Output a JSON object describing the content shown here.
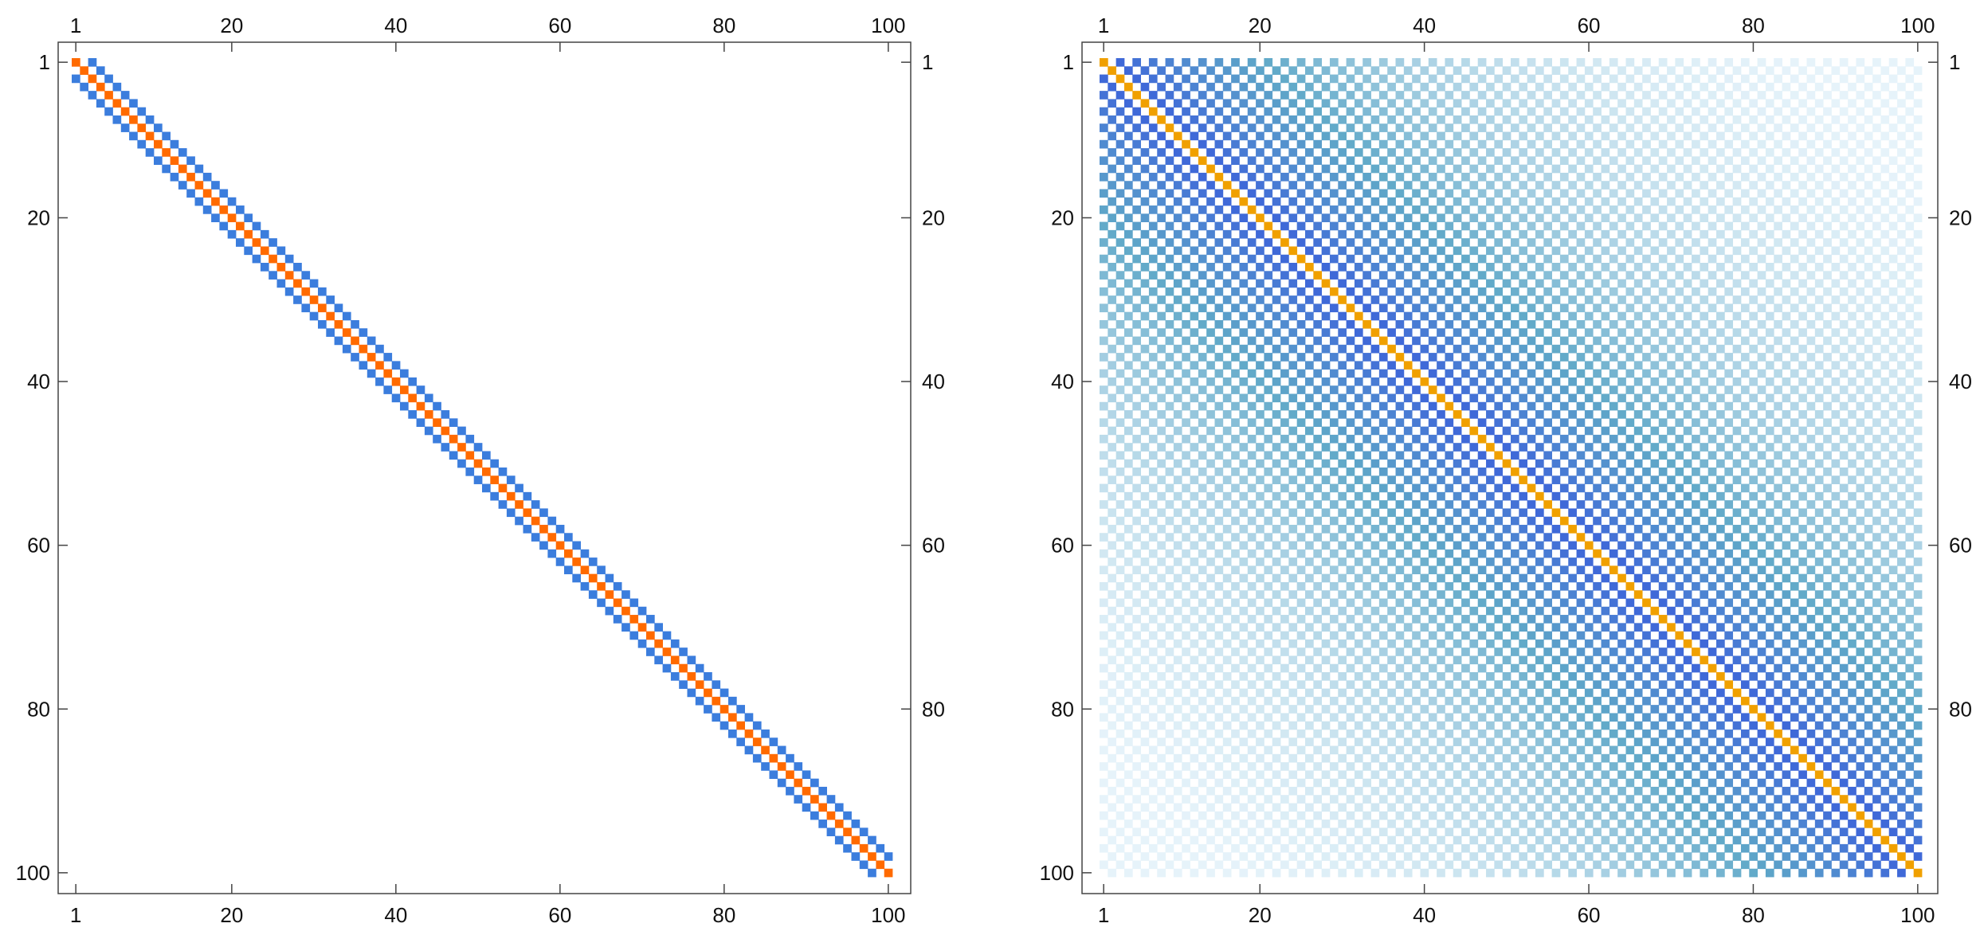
{
  "chart_data": [
    {
      "type": "heatmap",
      "title": "",
      "xlabel": "",
      "ylabel": "",
      "rows": 100,
      "cols": 100,
      "x_ticks": [
        "1",
        "20",
        "40",
        "60",
        "80",
        "100"
      ],
      "y_ticks": [
        "1",
        "20",
        "40",
        "60",
        "80",
        "100"
      ],
      "xlim": [
        1,
        100
      ],
      "ylim": [
        100,
        1
      ],
      "grid": false,
      "diagonals": [
        {
          "offset": 0,
          "value": 2.0,
          "color": "#FF6A00"
        },
        {
          "offset": 1,
          "value": 0.0
        },
        {
          "offset": -1,
          "value": 0.0
        },
        {
          "offset": 2,
          "value": -1.0,
          "color": "#3B7DDD"
        },
        {
          "offset": -2,
          "value": -1.0,
          "color": "#3B7DDD"
        }
      ]
    },
    {
      "type": "heatmap",
      "title": "",
      "xlabel": "",
      "ylabel": "",
      "rows": 100,
      "cols": 100,
      "x_ticks": [
        "1",
        "20",
        "40",
        "60",
        "80",
        "100"
      ],
      "y_ticks": [
        "1",
        "20",
        "40",
        "60",
        "80",
        "80",
        "100"
      ],
      "y_ticks_right": [
        "1",
        "20",
        "40",
        "60",
        "80"
      ],
      "xlim": [
        1,
        100
      ],
      "ylim": [
        100,
        1
      ],
      "grid": false,
      "pattern": "nonzero where row and column have the same parity; magnitude decays with distance from the main diagonal",
      "diagonal_value": 1.0,
      "offdiagonal_decay": 0.965,
      "colors": {
        "diagonal": "#F0A000",
        "near": "#3A5FDB",
        "mid": "#5FA8C8",
        "far": "#E6F3FA"
      }
    }
  ]
}
